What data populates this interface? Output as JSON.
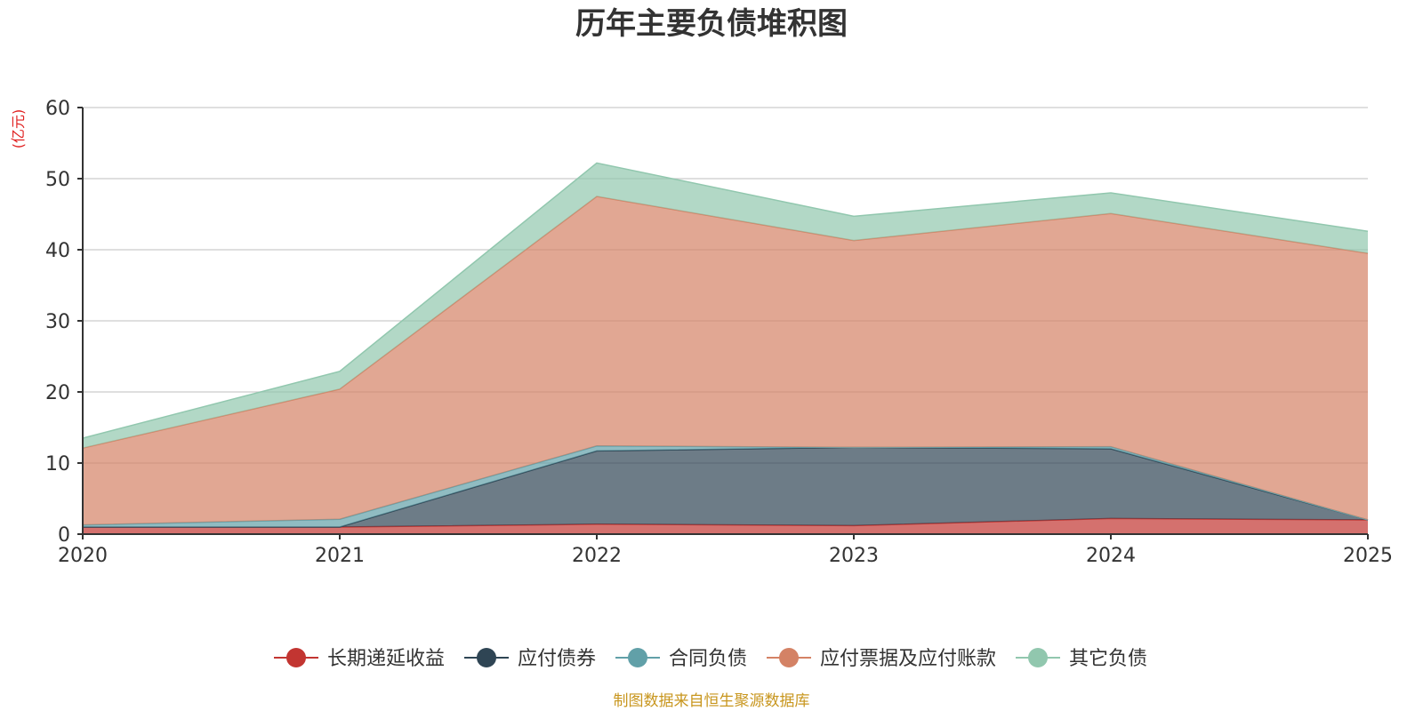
{
  "chart_data": {
    "type": "area",
    "stacked": true,
    "title": "历年主要负债堆积图",
    "unit_label": "(亿元)",
    "categories": [
      "2020",
      "2021",
      "2022",
      "2023",
      "2024",
      "2025"
    ],
    "ylim": [
      0,
      60
    ],
    "yticks": [
      0,
      10,
      20,
      30,
      40,
      50,
      60
    ],
    "grid": true,
    "legend_position": "bottom",
    "series": [
      {
        "name": "长期递延收益",
        "color": "#c23531",
        "values": [
          1.0,
          1.0,
          1.4,
          1.2,
          2.2,
          2.0
        ]
      },
      {
        "name": "应付债券",
        "color": "#2f4554",
        "values": [
          0.0,
          0.0,
          10.3,
          11.0,
          9.8,
          0.0
        ]
      },
      {
        "name": "合同负债",
        "color": "#61a0a8",
        "values": [
          0.3,
          1.1,
          0.7,
          0.0,
          0.3,
          0.0
        ]
      },
      {
        "name": "应付票据及应付账款",
        "color": "#d48265",
        "values": [
          10.8,
          18.3,
          35.1,
          29.1,
          32.8,
          37.5
        ]
      },
      {
        "name": "其它负债",
        "color": "#91c7ae",
        "values": [
          1.4,
          2.5,
          4.7,
          3.4,
          2.9,
          3.1
        ]
      }
    ],
    "source": "制图数据来自恒生聚源数据库"
  }
}
